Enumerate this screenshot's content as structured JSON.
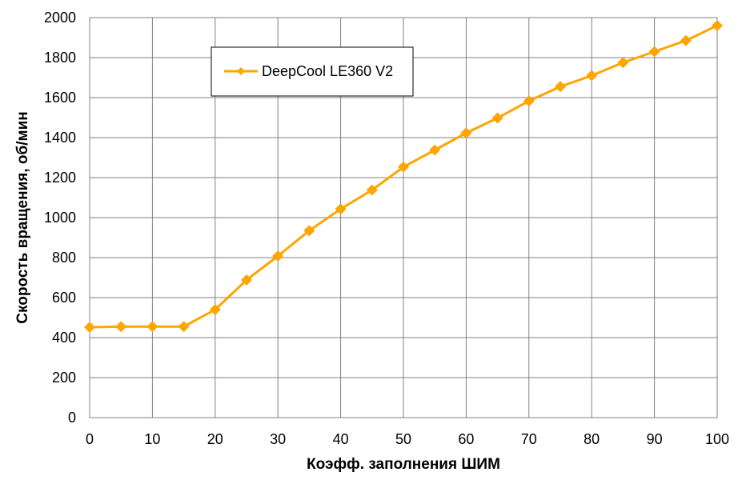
{
  "chart_data": {
    "type": "line",
    "title": "",
    "xlabel": "Коэфф. заполнения ШИМ",
    "ylabel": "Скорость вращения, об/мин",
    "xlim": [
      0,
      100
    ],
    "ylim": [
      0,
      2000
    ],
    "x_ticks": [
      0,
      10,
      20,
      30,
      40,
      50,
      60,
      70,
      80,
      90,
      100
    ],
    "y_ticks": [
      0,
      200,
      400,
      600,
      800,
      1000,
      1200,
      1400,
      1600,
      1800,
      2000
    ],
    "grid": true,
    "legend_position": "top-left",
    "series": [
      {
        "name": "DeepCool LE360 V2",
        "color": "#ffa500",
        "marker": "diamond",
        "x": [
          0,
          5,
          10,
          15,
          20,
          25,
          30,
          35,
          40,
          45,
          50,
          55,
          60,
          65,
          70,
          75,
          80,
          85,
          90,
          95,
          100
        ],
        "y": [
          452,
          455,
          455,
          455,
          540,
          688,
          808,
          935,
          1043,
          1138,
          1253,
          1338,
          1423,
          1498,
          1583,
          1655,
          1710,
          1775,
          1830,
          1885,
          1960
        ]
      }
    ]
  }
}
